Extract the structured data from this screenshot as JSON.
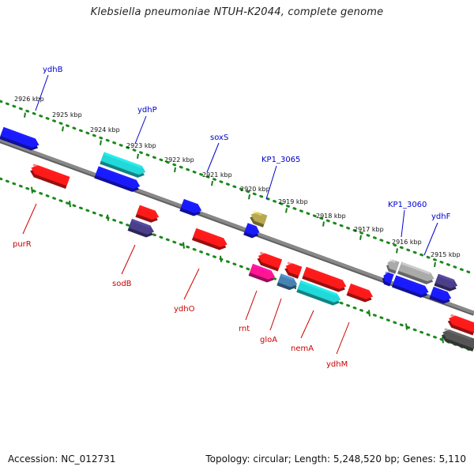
{
  "header": {
    "title": "Klebsiella pneumoniae NTUH-K2044, complete genome"
  },
  "footer": {
    "accession": "Accession: NC_012731",
    "summary": "Topology: circular; Length: 5,248,520 bp; Genes: 5,110"
  },
  "scale": {
    "labels": [
      "2926 kbp",
      "2925 kbp",
      "2924 kbp",
      "2923 kbp",
      "2922 kbp",
      "2921 kbp",
      "2920 kbp",
      "2919 kbp",
      "2918 kbp",
      "2917 kbp",
      "2916 kbp",
      "2915 kbp"
    ]
  },
  "genes_forward_labels": [
    "ydhB",
    "ydhP",
    "soxS",
    "KP1_3065",
    "KP1_3060",
    "ydhF"
  ],
  "genes_reverse_labels": [
    "purR",
    "sodB",
    "ydhO",
    "rnt",
    "gloA",
    "nemA",
    "ydhM"
  ],
  "colors": {
    "forward_gene": "#1a1aff",
    "reverse_gene": "#ff1a1a",
    "cyan_gene": "#22d8d8",
    "purple_gene": "#4b3f8a",
    "magenta_gene": "#ff1493",
    "steel_gene": "#4682b4",
    "olive_gene": "#b8a850",
    "gray_gene": "#aaaaaa",
    "dark_gray_gene": "#555555",
    "backbone": "#888888",
    "dotted_track": "#1a8a1a",
    "forward_label": "#0000cc",
    "reverse_label": "#cc0000"
  }
}
